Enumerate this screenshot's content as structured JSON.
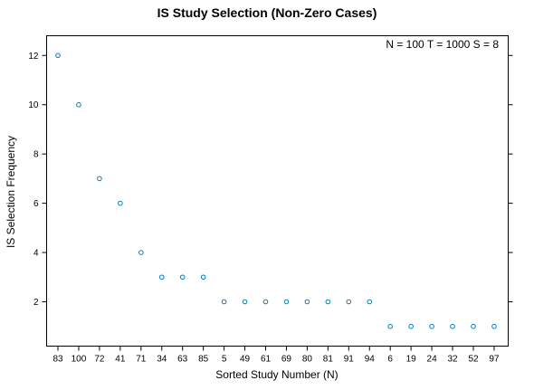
{
  "chart_data": {
    "type": "scatter",
    "title": "IS Study Selection (Non-Zero Cases)",
    "xlabel": "Sorted Study Number (N)",
    "ylabel": "IS Selection Frequency",
    "annotation": "N = 100  T = 1000  S = 8",
    "categories": [
      "83",
      "100",
      "72",
      "41",
      "71",
      "34",
      "63",
      "85",
      "5",
      "49",
      "61",
      "69",
      "80",
      "81",
      "91",
      "94",
      "6",
      "19",
      "24",
      "32",
      "52",
      "97"
    ],
    "values": [
      12,
      10,
      7,
      6,
      4,
      3,
      3,
      3,
      2,
      2,
      2,
      2,
      2,
      2,
      2,
      2,
      1,
      1,
      1,
      1,
      1,
      1
    ],
    "ylim": [
      0.2,
      12.8
    ],
    "yticks": [
      2,
      4,
      6,
      8,
      10,
      12
    ],
    "point_color": "#0080C0",
    "grid": false
  }
}
